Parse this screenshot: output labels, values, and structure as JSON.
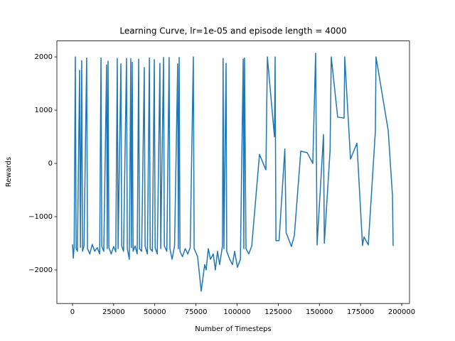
{
  "chart_data": {
    "type": "line",
    "title": "Learning Curve, lr=1e-05 and episode length = 4000",
    "x_label": "Number of Timesteps",
    "y_label": "Rewards",
    "color": "#1f77b4",
    "grid": false,
    "xlim": [
      -9500,
      204750
    ],
    "ylim": [
      -2630,
      2300
    ],
    "xticks": [
      0,
      25000,
      50000,
      75000,
      100000,
      125000,
      150000,
      175000,
      200000
    ],
    "yticks": [
      {
        "value": -2000,
        "label": "−2000"
      },
      {
        "value": -1000,
        "label": "−1000"
      },
      0,
      1000,
      2000
    ],
    "x": [
      0,
      500,
      1000,
      1700,
      2200,
      3000,
      4300,
      4800,
      5600,
      6100,
      7000,
      8600,
      9100,
      10500,
      12000,
      13500,
      15000,
      16500,
      17300,
      17800,
      19000,
      20700,
      21100,
      21600,
      22100,
      23500,
      25000,
      26300,
      27200,
      27700,
      29400,
      29900,
      31000,
      32800,
      33300,
      34500,
      35400,
      35800,
      36300,
      36800,
      38000,
      39300,
      40200,
      40700,
      42000,
      43600,
      44100,
      45500,
      46700,
      47200,
      48500,
      49700,
      50200,
      51500,
      53100,
      53600,
      55300,
      55800,
      57300,
      58700,
      59200,
      60500,
      62000,
      63900,
      64300,
      64800,
      65300,
      66800,
      68500,
      70000,
      71500,
      73400,
      73900,
      76000,
      78200,
      80300,
      81200,
      82500,
      83800,
      85500,
      86800,
      88100,
      89400,
      91100,
      91500,
      92000,
      93300,
      93700,
      95500,
      97200,
      98500,
      100200,
      102000,
      103700,
      104100,
      104500,
      105400,
      107100,
      108900,
      113600,
      117500,
      118400,
      122700,
      123100,
      123600,
      125500,
      129000,
      129800,
      133000,
      134800,
      138700,
      142600,
      146000,
      147700,
      148600,
      151200,
      152500,
      153000,
      156500,
      157200,
      161100,
      165000,
      165400,
      168900,
      172800,
      176200,
      177100,
      179700,
      184000,
      184400,
      191800,
      194400,
      194800
    ],
    "values": [
      -1520,
      -1780,
      -1550,
      2000,
      -1600,
      -1650,
      1750,
      -1580,
      1930,
      -1650,
      -1550,
      1980,
      -1600,
      -1700,
      -1520,
      -1650,
      -1580,
      -1700,
      1980,
      -1560,
      -1650,
      1850,
      -1600,
      1920,
      -1580,
      -1700,
      -1560,
      -1660,
      1970,
      -1600,
      1870,
      -1550,
      -1650,
      1970,
      -1600,
      -1800,
      1970,
      -1580,
      1900,
      -1650,
      -1550,
      -1700,
      1960,
      -1600,
      -1650,
      1800,
      -1550,
      -1700,
      1980,
      -1600,
      -1650,
      1950,
      -1580,
      -1700,
      1880,
      -1600,
      1990,
      -1550,
      -1650,
      1990,
      -1600,
      -1800,
      -1550,
      1870,
      -1600,
      1990,
      -1650,
      -1750,
      -1600,
      -1700,
      -1580,
      2000,
      -1600,
      -1750,
      -2400,
      -1900,
      -2000,
      -1600,
      -1800,
      -1700,
      -2000,
      -1650,
      -1900,
      -1550,
      1970,
      -1600,
      1880,
      -1650,
      -1800,
      -1900,
      -1650,
      -1950,
      -1800,
      1960,
      -1600,
      1980,
      -1600,
      -1700,
      -1550,
      170,
      -120,
      2000,
      500,
      2000,
      -1450,
      -1450,
      270,
      -1300,
      -1560,
      -1350,
      230,
      200,
      0,
      2070,
      -1530,
      -150,
      540,
      -1500,
      250,
      2000,
      870,
      850,
      2000,
      80,
      380,
      -1540,
      -1380,
      -1530,
      600,
      2000,
      620,
      -600,
      -1550
    ]
  }
}
